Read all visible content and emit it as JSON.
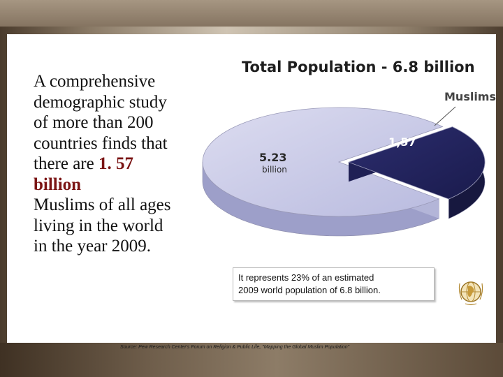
{
  "intro": {
    "line_1": "A comprehensive",
    "line_2": "demographic study",
    "line_3": "of more than 200",
    "line_4": "countries finds that",
    "line_5_prefix": "there are ",
    "line_5_highlight": "1. 57",
    "line_6_highlight": "billion",
    "line_7": "Muslims of all ages",
    "line_8": "living in the world",
    "line_9": "in the year 2009."
  },
  "caption": {
    "line_1": "It represents 23% of an estimated",
    "line_2": "2009 world population of 6.8 billion."
  },
  "source": "Source: Pew Research Center's Forum on Religion & Public Life, \"Mapping the Global Muslim Population\"",
  "icons": {
    "globe": "globe-icon"
  },
  "chart_data": {
    "type": "pie",
    "style": "3d-exploded",
    "title": "Total Population - 6.8 billion",
    "total": 6.8,
    "slices": [
      {
        "label": "5.23",
        "sublabel": "billion",
        "value": 5.23,
        "color": "#c7c8e6"
      },
      {
        "label": "1,57",
        "value": 1.57,
        "color": "#24255f",
        "callout": "Muslims"
      }
    ]
  }
}
